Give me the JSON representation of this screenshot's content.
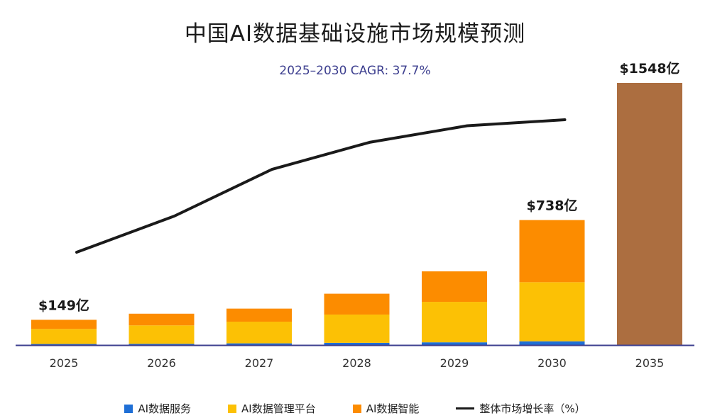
{
  "chart_data": {
    "type": "bar",
    "title": "中国AI数据基础设施市场规模预测",
    "subtitle": "2025–2030 CAGR: 37.7%",
    "categories": [
      "2025",
      "2026",
      "2027",
      "2028",
      "2029",
      "2030",
      "2035"
    ],
    "series": [
      {
        "name": "AI数据服务",
        "color": "#1f6fd6",
        "values": [
          6,
          7,
          10,
          13,
          16,
          22,
          null
        ]
      },
      {
        "name": "AI数据管理平台",
        "color": "#fcc105",
        "values": [
          89,
          109,
          128,
          167,
          239,
          349,
          null
        ]
      },
      {
        "name": "AI数据智能",
        "color": "#fc8c00",
        "values": [
          54,
          69,
          77,
          123,
          180,
          367,
          null
        ]
      },
      {
        "name": "整体市场",
        "color": "#ac6e40",
        "values": [
          null,
          null,
          null,
          null,
          null,
          null,
          1548
        ]
      }
    ],
    "growth_line": {
      "name": "整体市场增长率（%）",
      "color": "#1a1a1a",
      "categories": [
        "2025",
        "2026",
        "2027",
        "2028",
        "2029",
        "2030"
      ],
      "relative_values": [
        0.0,
        0.24,
        0.55,
        0.73,
        0.84,
        0.88
      ]
    },
    "data_labels": [
      {
        "category": "2025",
        "text": "$149亿"
      },
      {
        "category": "2030",
        "text": "$738亿"
      },
      {
        "category": "2035",
        "text": "$1548亿"
      }
    ],
    "ylim": [
      0,
      1548
    ],
    "xlabel": "",
    "ylabel": "",
    "grid": false,
    "legend_position": "bottom"
  },
  "legend": {
    "items": [
      {
        "label": "AI数据服务",
        "color": "#1f6fd6",
        "kind": "box"
      },
      {
        "label": "AI数据管理平台",
        "color": "#fcc105",
        "kind": "box"
      },
      {
        "label": "AI数据智能",
        "color": "#fc8c00",
        "kind": "box"
      },
      {
        "label": "整体市场增长率（%）",
        "color": "#1a1a1a",
        "kind": "line"
      }
    ]
  }
}
